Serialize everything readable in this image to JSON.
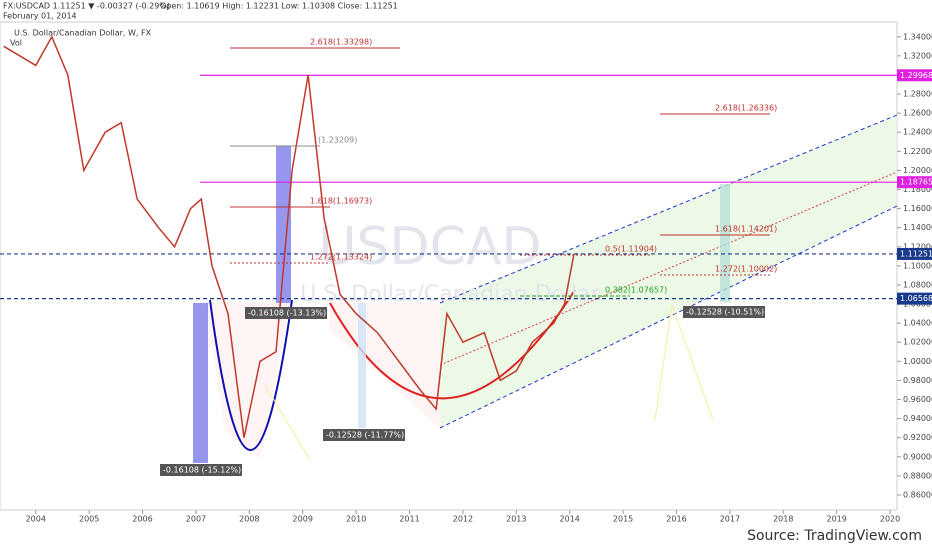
{
  "header": {
    "symbol": "FX:USDCAD 1.11251 ▼ -0.00327 (-0.29%)",
    "ohlc": "Open: 1.10619  High: 1.12231  Low: 1.10308  Close: 1.11251",
    "date": "February 01, 2014",
    "series_name": "U.S. Dollar/Canadian Dollar, W, FX",
    "vol": "Vol"
  },
  "watermark": {
    "symbol": "USDCAD",
    "name": "U.S. Dollar/Canadian Dollar"
  },
  "source": "Source: TradingView.com",
  "annotations": [
    "2.618(1.33298)",
    "(1.23209)",
    "1.618(1.16973)",
    "1.272(1.13324)",
    "0.5(1.11904)",
    "0.382(1.07657)",
    "2.618(1.26336)",
    "1.618(1.14201)",
    "1.272(1.10002)",
    "-0.16108 (-13.13%)",
    "-0.16108 (-15.12%)",
    "-0.12528 (-11.77%)",
    "-0.12528 (-10.51%)"
  ],
  "chart_data": {
    "type": "line",
    "color": "#c0392b",
    "x": [
      2003.4,
      2004.0,
      2004.3,
      2004.6,
      2004.9,
      2005.3,
      2005.6,
      2005.9,
      2006.3,
      2006.6,
      2006.9,
      2007.1,
      2007.3,
      2007.6,
      2007.9,
      2008.2,
      2008.5,
      2008.8,
      2009.1,
      2009.4,
      2009.7,
      2010.0,
      2010.4,
      2010.8,
      2011.2,
      2011.5,
      2011.7,
      2012.0,
      2012.4,
      2012.7,
      2013.0,
      2013.3,
      2013.7,
      2013.9,
      2014.08
    ],
    "values": [
      1.33,
      1.31,
      1.34,
      1.3,
      1.2,
      1.24,
      1.25,
      1.17,
      1.14,
      1.12,
      1.16,
      1.17,
      1.1,
      1.05,
      0.92,
      1.0,
      1.01,
      1.2,
      1.3,
      1.15,
      1.07,
      1.05,
      1.03,
      1.0,
      0.97,
      0.95,
      1.05,
      1.02,
      1.03,
      0.98,
      0.99,
      1.02,
      1.04,
      1.06,
      1.11251
    ],
    "xlim": [
      2003.33,
      2020.13
    ],
    "xticks": [
      2004,
      2005,
      2006,
      2007,
      2008,
      2009,
      2010,
      2011,
      2012,
      2013,
      2014,
      2015,
      2016,
      2017,
      2018,
      2019,
      2020
    ],
    "ylim": [
      1.35547,
      0.84427
    ],
    "yticks": [
      {
        "value": 1.34,
        "label": "1.34000"
      },
      {
        "value": 1.32,
        "label": "1.32000"
      },
      {
        "value": 1.3,
        "label": "1.30000"
      },
      {
        "value": 1.28,
        "label": "1.28000"
      },
      {
        "value": 1.26,
        "label": "1.26000"
      },
      {
        "value": 1.24,
        "label": "1.24000"
      },
      {
        "value": 1.22,
        "label": "1.22000"
      },
      {
        "value": 1.2,
        "label": "1.20000"
      },
      {
        "value": 1.18,
        "label": "1.18000"
      },
      {
        "value": 1.16,
        "label": "1.16000"
      },
      {
        "value": 1.14,
        "label": "1.14000"
      },
      {
        "value": 1.12,
        "label": "1.12000"
      },
      {
        "value": 1.1,
        "label": "1.10000"
      },
      {
        "value": 1.08,
        "label": "1.08000"
      },
      {
        "value": 1.06,
        "label": "1.06000"
      },
      {
        "value": 1.04,
        "label": "1.04000"
      },
      {
        "value": 1.02,
        "label": "1.02000"
      },
      {
        "value": 1.0,
        "label": "1.00000"
      },
      {
        "value": 0.98,
        "label": "0.98000"
      },
      {
        "value": 0.96,
        "label": "0.96000"
      },
      {
        "value": 0.94,
        "label": "0.94000"
      },
      {
        "value": 0.92,
        "label": "0.92000"
      },
      {
        "value": 0.9,
        "label": "0.90000"
      },
      {
        "value": 0.88,
        "label": "0.88000"
      },
      {
        "value": 0.86,
        "label": "0.86000"
      }
    ],
    "price_labels": [
      {
        "value": 1.29968,
        "color": "#e020e0"
      },
      {
        "value": 1.18765,
        "color": "#e020e0"
      },
      {
        "value": 1.11251,
        "color": "#1a3a8c"
      },
      {
        "value": 1.06568,
        "color": "#1a3a8c"
      }
    ]
  }
}
